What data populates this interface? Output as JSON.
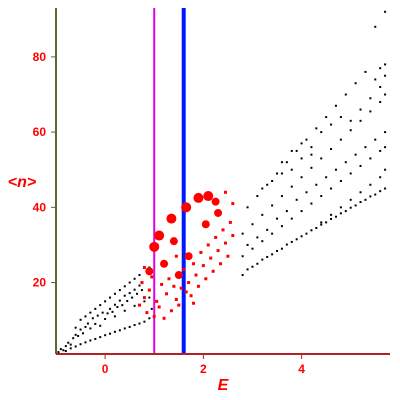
{
  "chart_data": {
    "type": "scatter",
    "title": "",
    "xlabel": "E",
    "ylabel": "<n>",
    "xlim": [
      -1,
      5.8
    ],
    "ylim": [
      1,
      93
    ],
    "x_ticks": [
      0,
      2,
      4
    ],
    "y_ticks": [
      20,
      40,
      60,
      80
    ],
    "x_tick_labels": [
      "0",
      "2",
      "4"
    ],
    "y_tick_labels": [
      "20",
      "40",
      "60",
      "80"
    ],
    "grid": false,
    "legend": "none",
    "vertical_lines": [
      {
        "x": 1.0,
        "color": "#e000e0"
      },
      {
        "x": 1.6,
        "color": "#0018ff"
      }
    ],
    "series": [
      {
        "color": "#000000",
        "points": [
          [
            -0.95,
            1.5
          ],
          [
            -0.9,
            2.3
          ],
          [
            -0.85,
            2.0
          ],
          [
            -0.8,
            3.1
          ],
          [
            -0.75,
            4.0
          ],
          [
            -0.7,
            3.5
          ],
          [
            -0.65,
            5.2
          ],
          [
            -0.6,
            6.1
          ],
          [
            -0.55,
            5.8
          ],
          [
            -0.5,
            7.5
          ],
          [
            -0.45,
            6.5
          ],
          [
            -0.4,
            8.2
          ],
          [
            -0.35,
            9.1
          ],
          [
            -0.3,
            7.8
          ],
          [
            -0.25,
            10.5
          ],
          [
            -0.2,
            9.0
          ],
          [
            -0.15,
            11.2
          ],
          [
            -0.1,
            8.5
          ],
          [
            -0.05,
            12.0
          ],
          [
            0.0,
            10.3
          ],
          [
            0.05,
            11.8
          ],
          [
            0.1,
            13.0
          ],
          [
            0.15,
            12.2
          ],
          [
            0.2,
            14.1
          ],
          [
            0.25,
            13.5
          ],
          [
            0.3,
            15.2
          ],
          [
            0.35,
            14.0
          ],
          [
            0.4,
            16.5
          ],
          [
            0.45,
            15.1
          ],
          [
            0.5,
            17.2
          ],
          [
            0.55,
            16.0
          ],
          [
            0.6,
            18.1
          ],
          [
            0.65,
            17.0
          ],
          [
            0.7,
            19.2
          ],
          [
            0.75,
            18.0
          ],
          [
            -0.8,
            1.8
          ],
          [
            -0.7,
            2.5
          ],
          [
            -0.6,
            3.0
          ],
          [
            -0.5,
            3.6
          ],
          [
            -0.4,
            4.1
          ],
          [
            -0.3,
            4.6
          ],
          [
            -0.2,
            5.0
          ],
          [
            -0.1,
            5.5
          ],
          [
            0.0,
            6.0
          ],
          [
            0.1,
            6.4
          ],
          [
            0.2,
            6.9
          ],
          [
            0.3,
            7.3
          ],
          [
            0.4,
            7.8
          ],
          [
            0.5,
            8.2
          ],
          [
            0.6,
            8.7
          ],
          [
            0.7,
            9.1
          ],
          [
            0.8,
            9.6
          ],
          [
            -0.6,
            8.0
          ],
          [
            -0.5,
            10.1
          ],
          [
            -0.3,
            12.0
          ],
          [
            -0.1,
            14.0
          ],
          [
            0.1,
            16.0
          ],
          [
            0.3,
            18.0
          ],
          [
            0.5,
            20.0
          ],
          [
            0.7,
            22.0
          ],
          [
            0.2,
            11.0
          ],
          [
            0.4,
            12.5
          ],
          [
            0.6,
            13.8
          ],
          [
            0.8,
            15.0
          ],
          [
            -0.4,
            11.0
          ],
          [
            -0.2,
            13.0
          ],
          [
            0.0,
            15.0
          ],
          [
            0.2,
            17.0
          ],
          [
            0.4,
            19.0
          ],
          [
            0.6,
            21.0
          ],
          [
            0.9,
            24.0
          ],
          [
            0.9,
            16.0
          ],
          [
            0.9,
            10.5
          ],
          [
            0.95,
            13.0
          ],
          [
            2.8,
            22.0
          ],
          [
            2.9,
            23.5
          ],
          [
            3.0,
            24.2
          ],
          [
            3.1,
            25.0
          ],
          [
            3.2,
            26.1
          ],
          [
            3.3,
            26.8
          ],
          [
            3.4,
            27.5
          ],
          [
            3.5,
            28.4
          ],
          [
            3.6,
            29.0
          ],
          [
            3.7,
            30.1
          ],
          [
            3.8,
            30.8
          ],
          [
            3.9,
            31.5
          ],
          [
            4.0,
            32.3
          ],
          [
            4.1,
            33.0
          ],
          [
            4.2,
            33.9
          ],
          [
            4.3,
            34.5
          ],
          [
            4.4,
            35.4
          ],
          [
            4.5,
            36.0
          ],
          [
            4.6,
            36.9
          ],
          [
            4.7,
            37.5
          ],
          [
            4.8,
            38.4
          ],
          [
            4.9,
            39.0
          ],
          [
            5.0,
            39.9
          ],
          [
            5.1,
            40.5
          ],
          [
            5.2,
            41.4
          ],
          [
            5.3,
            42.0
          ],
          [
            5.4,
            42.9
          ],
          [
            5.5,
            43.4
          ],
          [
            5.6,
            44.3
          ],
          [
            5.7,
            45.0
          ],
          [
            2.8,
            27.0
          ],
          [
            3.0,
            29.0
          ],
          [
            3.2,
            31.0
          ],
          [
            3.4,
            33.0
          ],
          [
            3.6,
            35.0
          ],
          [
            3.8,
            37.0
          ],
          [
            4.0,
            39.0
          ],
          [
            4.2,
            41.0
          ],
          [
            4.4,
            43.0
          ],
          [
            4.6,
            45.0
          ],
          [
            4.8,
            47.0
          ],
          [
            5.0,
            49.0
          ],
          [
            5.2,
            51.0
          ],
          [
            5.4,
            53.0
          ],
          [
            5.6,
            55.0
          ],
          [
            5.7,
            56.0
          ],
          [
            2.8,
            33.0
          ],
          [
            3.0,
            35.5
          ],
          [
            3.2,
            38.0
          ],
          [
            3.4,
            40.5
          ],
          [
            3.6,
            43.0
          ],
          [
            3.8,
            45.5
          ],
          [
            4.0,
            48.0
          ],
          [
            4.2,
            50.5
          ],
          [
            4.4,
            53.0
          ],
          [
            4.6,
            55.5
          ],
          [
            4.8,
            58.0
          ],
          [
            5.0,
            60.5
          ],
          [
            5.2,
            63.0
          ],
          [
            5.4,
            65.5
          ],
          [
            5.6,
            68.0
          ],
          [
            5.7,
            70.0
          ],
          [
            2.9,
            40.0
          ],
          [
            3.1,
            43.0
          ],
          [
            3.3,
            46.0
          ],
          [
            3.5,
            49.0
          ],
          [
            3.7,
            52.0
          ],
          [
            3.9,
            55.0
          ],
          [
            4.1,
            58.0
          ],
          [
            4.3,
            61.0
          ],
          [
            4.5,
            64.0
          ],
          [
            4.7,
            67.0
          ],
          [
            4.9,
            70.0
          ],
          [
            5.1,
            73.0
          ],
          [
            5.3,
            76.0
          ],
          [
            5.5,
            74.0
          ],
          [
            5.6,
            77.0
          ],
          [
            5.7,
            78.0
          ],
          [
            3.6,
            52.0
          ],
          [
            3.8,
            55.0
          ],
          [
            4.0,
            57.0
          ],
          [
            4.2,
            56.0
          ],
          [
            4.4,
            60.0
          ],
          [
            4.6,
            62.0
          ],
          [
            4.8,
            64.0
          ],
          [
            5.0,
            63.0
          ],
          [
            5.2,
            66.0
          ],
          [
            5.4,
            69.0
          ],
          [
            5.6,
            72.0
          ],
          [
            5.7,
            75.0
          ],
          [
            5.5,
            88.0
          ],
          [
            5.7,
            92.0
          ],
          [
            2.9,
            30.0
          ],
          [
            3.1,
            32.0
          ],
          [
            3.3,
            34.0
          ],
          [
            3.5,
            37.0
          ],
          [
            3.7,
            39.0
          ],
          [
            3.9,
            42.0
          ],
          [
            4.1,
            44.0
          ],
          [
            4.3,
            46.0
          ],
          [
            4.5,
            48.0
          ],
          [
            4.7,
            50.0
          ],
          [
            4.9,
            52.0
          ],
          [
            5.1,
            54.0
          ],
          [
            5.3,
            56.0
          ],
          [
            5.5,
            58.0
          ],
          [
            5.7,
            60.0
          ],
          [
            4.4,
            36.0
          ],
          [
            4.6,
            38.0
          ],
          [
            4.8,
            40.0
          ],
          [
            5.0,
            42.0
          ],
          [
            5.2,
            44.0
          ],
          [
            5.4,
            46.0
          ],
          [
            5.6,
            48.0
          ],
          [
            5.7,
            50.0
          ],
          [
            3.2,
            45.0
          ],
          [
            3.4,
            47.0
          ],
          [
            3.6,
            49.0
          ],
          [
            3.8,
            50.0
          ],
          [
            4.0,
            53.0
          ],
          [
            4.2,
            54.0
          ]
        ]
      },
      {
        "color": "#ff0000",
        "points": [
          [
            1.0,
            29.5,
            5
          ],
          [
            1.1,
            32.5,
            5
          ],
          [
            1.35,
            37.0,
            5
          ],
          [
            1.65,
            40.0,
            5
          ],
          [
            1.9,
            42.5,
            5
          ],
          [
            2.1,
            43.0,
            5
          ],
          [
            2.25,
            41.5,
            4
          ],
          [
            2.05,
            35.5,
            4
          ],
          [
            0.9,
            23.0,
            4
          ],
          [
            1.2,
            25.0,
            4
          ],
          [
            1.5,
            22.0,
            4
          ],
          [
            1.7,
            27.0,
            4
          ],
          [
            2.3,
            38.5,
            4
          ],
          [
            1.4,
            31.0,
            4
          ],
          [
            0.7,
            14.0,
            2
          ],
          [
            0.8,
            16.0,
            2
          ],
          [
            0.9,
            18.0,
            2
          ],
          [
            0.85,
            12.0,
            2
          ],
          [
            1.0,
            11.0,
            2
          ],
          [
            1.05,
            15.0,
            2
          ],
          [
            1.15,
            19.5,
            2
          ],
          [
            1.25,
            17.0,
            2
          ],
          [
            1.3,
            21.0,
            2
          ],
          [
            1.4,
            19.0,
            2
          ],
          [
            1.45,
            15.5,
            2
          ],
          [
            1.55,
            18.5,
            2
          ],
          [
            1.6,
            23.5,
            2
          ],
          [
            1.7,
            20.0,
            2
          ],
          [
            1.75,
            16.5,
            2
          ],
          [
            1.8,
            25.0,
            2
          ],
          [
            1.85,
            22.0,
            2
          ],
          [
            1.9,
            19.0,
            2
          ],
          [
            1.95,
            28.0,
            2
          ],
          [
            2.0,
            24.5,
            2
          ],
          [
            2.05,
            21.0,
            2
          ],
          [
            2.1,
            30.0,
            2
          ],
          [
            2.15,
            26.5,
            2
          ],
          [
            2.2,
            23.0,
            2
          ],
          [
            2.25,
            32.0,
            2
          ],
          [
            2.3,
            28.5,
            2
          ],
          [
            2.35,
            25.0,
            2
          ],
          [
            2.4,
            34.0,
            2
          ],
          [
            2.45,
            30.5,
            2
          ],
          [
            2.5,
            27.0,
            2
          ],
          [
            2.55,
            36.0,
            2
          ],
          [
            2.6,
            32.5,
            2
          ],
          [
            0.75,
            20.0,
            2
          ],
          [
            0.95,
            21.5,
            2
          ],
          [
            1.1,
            13.5,
            2
          ],
          [
            1.2,
            10.5,
            2
          ],
          [
            1.35,
            12.5,
            2
          ],
          [
            1.5,
            14.0,
            2
          ],
          [
            1.65,
            17.5,
            2
          ],
          [
            1.8,
            14.5,
            2
          ],
          [
            0.8,
            24.0,
            2
          ],
          [
            1.45,
            27.0,
            2
          ],
          [
            2.45,
            44.0,
            2
          ],
          [
            2.6,
            41.0,
            2
          ]
        ]
      }
    ]
  }
}
